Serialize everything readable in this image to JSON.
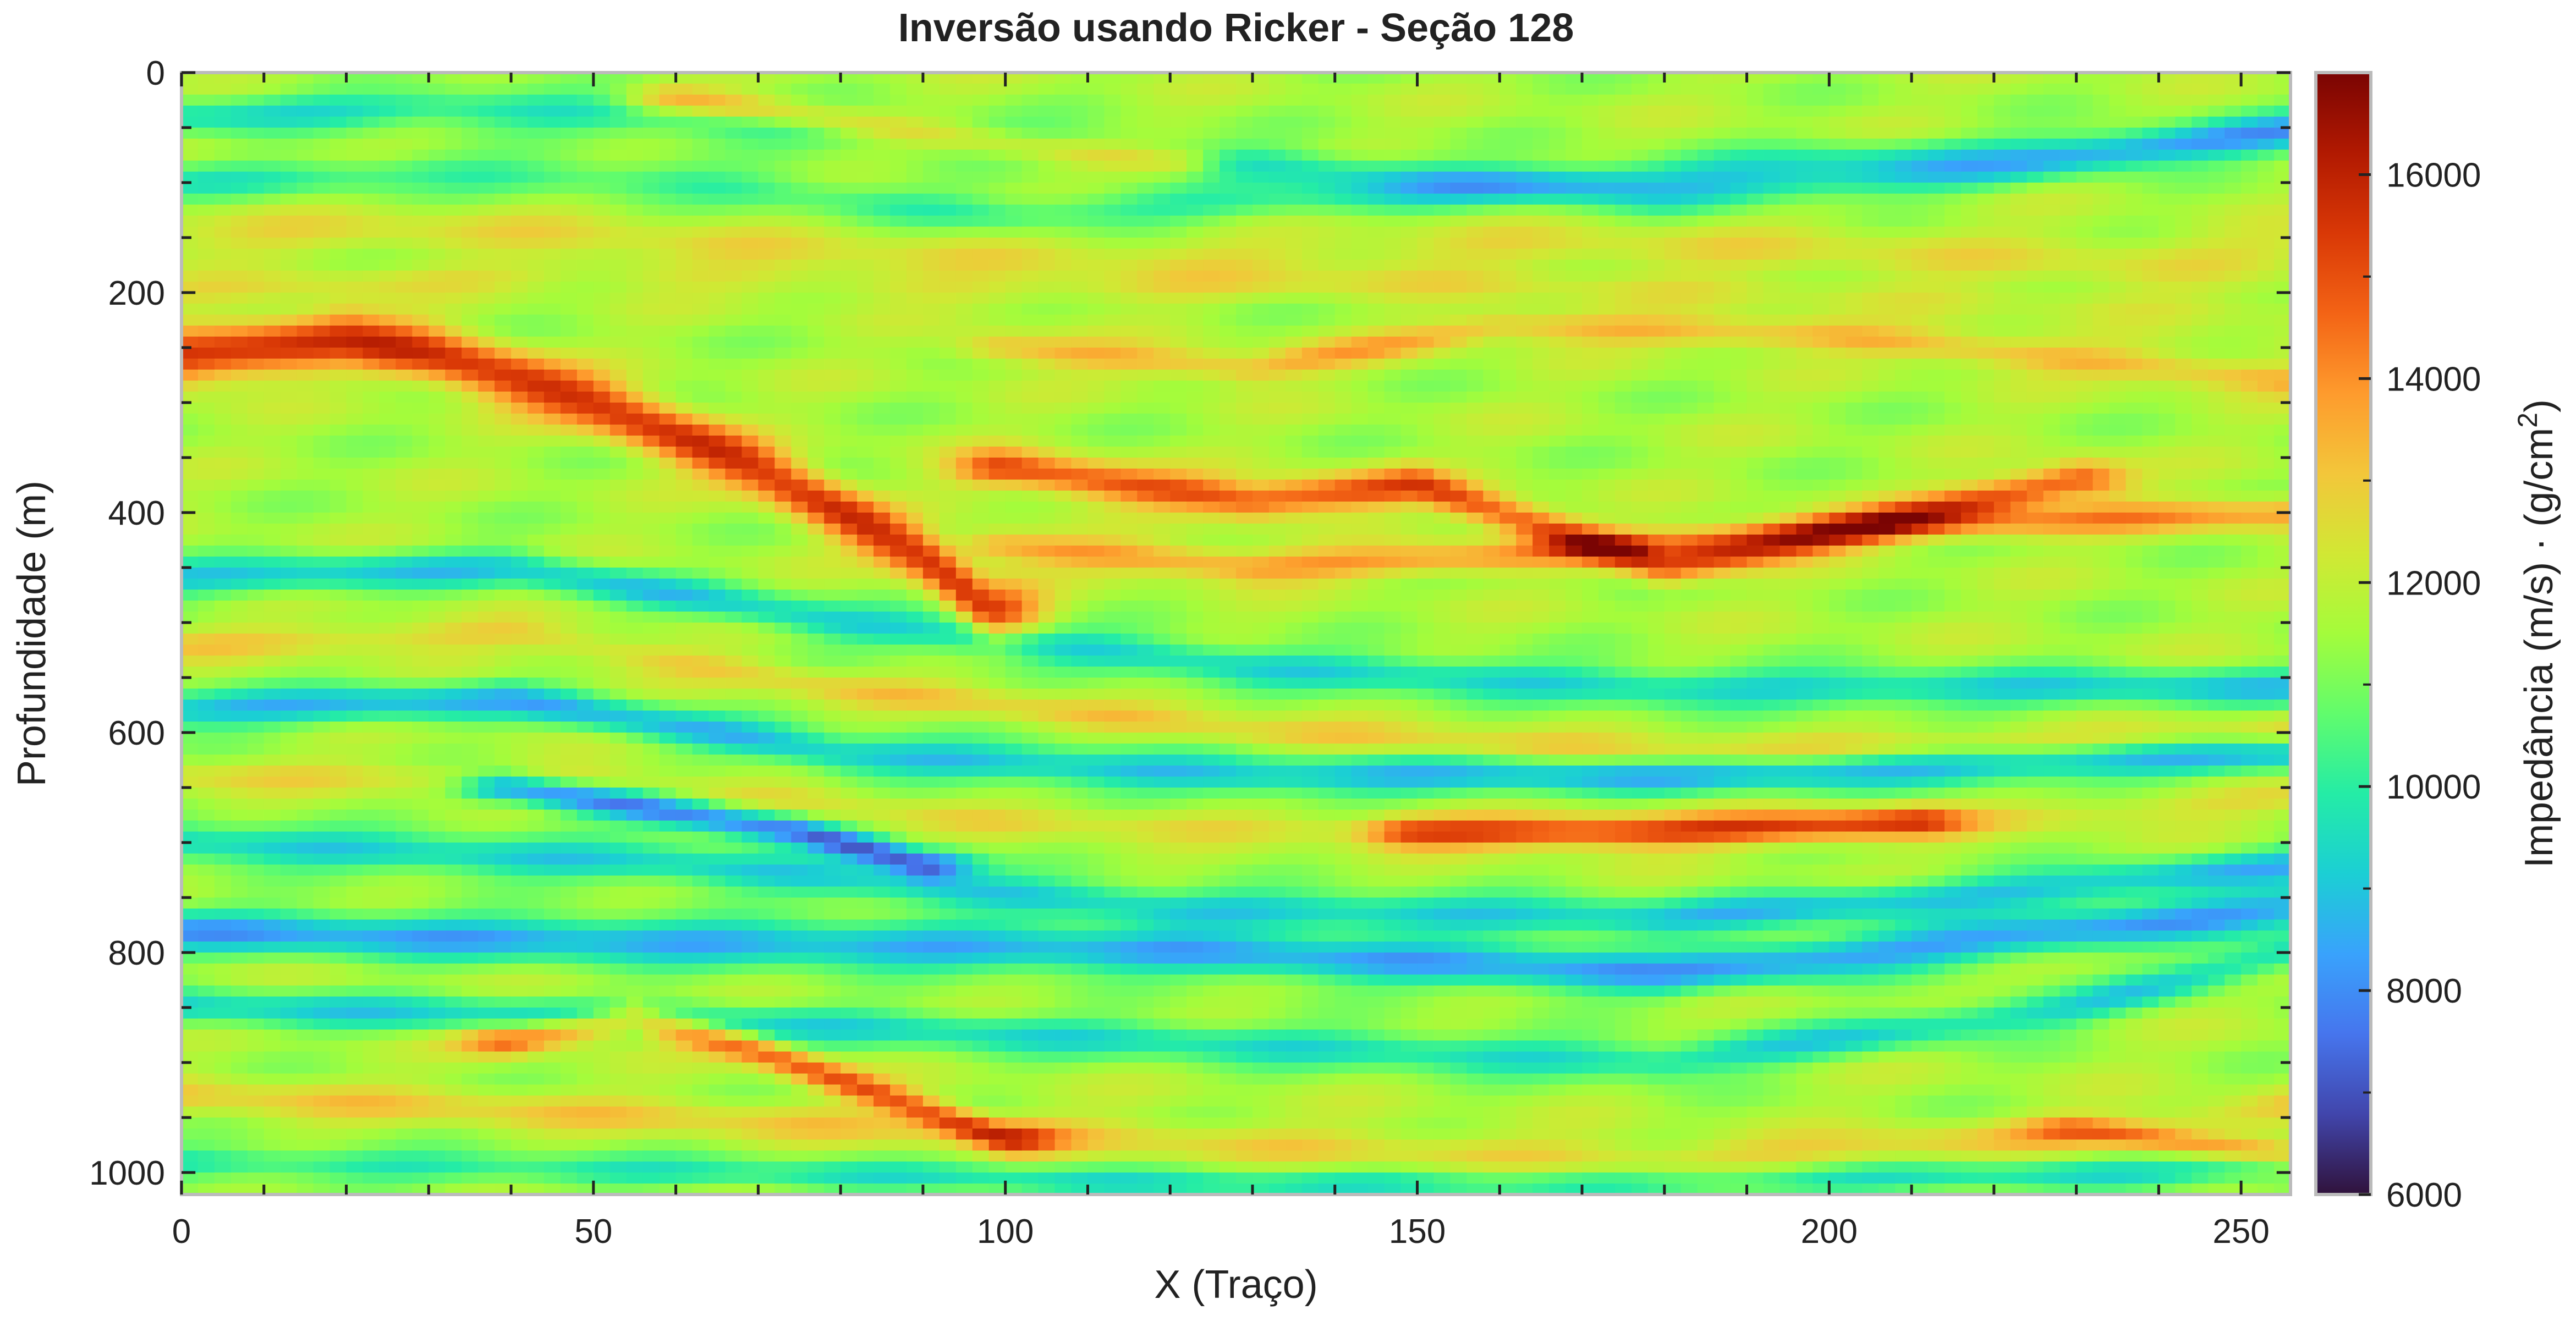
{
  "chart_data": {
    "type": "heatmap",
    "title": "Inversão usando Ricker - Seção 128",
    "xlabel": "X (Traço)",
    "ylabel": "Profundidade (m)",
    "xlim": [
      0,
      256
    ],
    "ylim": [
      1020,
      0
    ],
    "x_ticks": [
      "0",
      "50",
      "100",
      "150",
      "200",
      "250"
    ],
    "y_ticks": [
      "0",
      "200",
      "400",
      "600",
      "800",
      "1000"
    ],
    "colorbar": {
      "label": "Impedância (m/s) · (g/cm²)",
      "label_main": "Impedância (m/s) · (g/cm",
      "label_sup": "2",
      "label_end": ")",
      "min": 6000,
      "max": 17000,
      "ticks": [
        "6000",
        "8000",
        "10000",
        "12000",
        "14000",
        "16000"
      ],
      "colormap": "turbo",
      "colormap_stops": [
        "#30123b",
        "#4145ab",
        "#4675ed",
        "#39a2fc",
        "#1bcfd4",
        "#24eca6",
        "#61fc6c",
        "#a4fc3b",
        "#d1e834",
        "#f3c63a",
        "#fe9b2d",
        "#f36315",
        "#d93806",
        "#b11901",
        "#7a0403"
      ]
    },
    "background_impedance": 11600,
    "layers": [
      {
        "x": [
          0,
          30,
          60,
          100,
          140,
          180,
          220,
          256
        ],
        "depth": [
          40,
          30,
          40,
          60,
          90,
          110,
          90,
          50
        ],
        "delta": -2000,
        "thickness": 12
      },
      {
        "x": [
          60,
          90,
          120
        ],
        "depth": [
          25,
          55,
          80
        ],
        "delta": 2400,
        "thickness": 10
      },
      {
        "x": [
          0,
          40,
          80,
          120,
          160,
          200,
          240,
          256
        ],
        "depth": [
          150,
          140,
          160,
          170,
          160,
          160,
          170,
          160
        ],
        "delta": 800,
        "thickness": 16
      },
      {
        "x": [
          0,
          30,
          60,
          100,
          150,
          200,
          256
        ],
        "depth": [
          100,
          90,
          100,
          130,
          110,
          80,
          60
        ],
        "delta": -1500,
        "thickness": 12
      },
      {
        "x": [
          0,
          20,
          30,
          50,
          70,
          90,
          98
        ],
        "depth": [
          260,
          240,
          255,
          300,
          360,
          440,
          490
        ],
        "delta": 4000,
        "thickness": 18
      },
      {
        "x": [
          100,
          130,
          150,
          180,
          200,
          230
        ],
        "depth": [
          360,
          390,
          375,
          450,
          420,
          370
        ],
        "delta": 3500,
        "thickness": 12
      },
      {
        "x": [
          100,
          130,
          160,
          200,
          256
        ],
        "depth": [
          430,
          450,
          440,
          415,
          400
        ],
        "delta": 2300,
        "thickness": 10
      },
      {
        "x": [
          100,
          130,
          160,
          200,
          256
        ],
        "depth": [
          250,
          270,
          230,
          240,
          280
        ],
        "delta": 1800,
        "thickness": 10
      },
      {
        "x": [
          0,
          50,
          100,
          150,
          200,
          256
        ],
        "depth": [
          200,
          180,
          200,
          190,
          200,
          220
        ],
        "delta": 700,
        "thickness": 10
      },
      {
        "x": [
          0,
          40,
          80,
          130,
          180,
          256
        ],
        "depth": [
          460,
          450,
          500,
          540,
          560,
          560
        ],
        "delta": -2400,
        "thickness": 12
      },
      {
        "x": [
          0,
          40,
          80,
          130,
          180,
          256
        ],
        "depth": [
          520,
          510,
          560,
          600,
          620,
          600
        ],
        "delta": 1200,
        "thickness": 10
      },
      {
        "x": [
          0,
          40,
          80,
          130,
          180,
          256
        ],
        "depth": [
          580,
          570,
          620,
          640,
          640,
          620
        ],
        "delta": -2800,
        "thickness": 12
      },
      {
        "x": [
          0,
          50,
          100,
          150,
          200,
          256
        ],
        "depth": [
          640,
          640,
          680,
          690,
          690,
          660
        ],
        "delta": 900,
        "thickness": 10
      },
      {
        "x": [
          40,
          75,
          90
        ],
        "depth": [
          650,
          690,
          720
        ],
        "delta": -4000,
        "thickness": 10
      },
      {
        "x": [
          150,
          180,
          210
        ],
        "depth": [
          690,
          690,
          680
        ],
        "delta": 3000,
        "thickness": 10
      },
      {
        "x": [
          0,
          60,
          120,
          180,
          230,
          256
        ],
        "depth": [
          700,
          720,
          760,
          770,
          740,
          720
        ],
        "delta": -2600,
        "thickness": 12
      },
      {
        "x": [
          0,
          60,
          120,
          180,
          230,
          256
        ],
        "depth": [
          780,
          790,
          800,
          820,
          780,
          760
        ],
        "delta": -3200,
        "thickness": 14
      },
      {
        "x": [
          0,
          60,
          120,
          180,
          230,
          256
        ],
        "depth": [
          850,
          860,
          880,
          900,
          850,
          800
        ],
        "delta": -2200,
        "thickness": 12
      },
      {
        "x": [
          40,
          55,
          70,
          85,
          100
        ],
        "depth": [
          880,
          860,
          890,
          930,
          970
        ],
        "delta": 3200,
        "thickness": 10
      },
      {
        "x": [
          0,
          60,
          120,
          180,
          240,
          256
        ],
        "depth": [
          930,
          950,
          970,
          990,
          960,
          940
        ],
        "delta": 1200,
        "thickness": 12
      },
      {
        "x": [
          0,
          60,
          120,
          180,
          240,
          256
        ],
        "depth": [
          990,
          1000,
          1010,
          1010,
          1000,
          990
        ],
        "delta": -1800,
        "thickness": 10
      },
      {
        "x": [
          230,
          245,
          256
        ],
        "depth": [
          960,
          975,
          985
        ],
        "delta": 2000,
        "thickness": 8
      }
    ]
  }
}
